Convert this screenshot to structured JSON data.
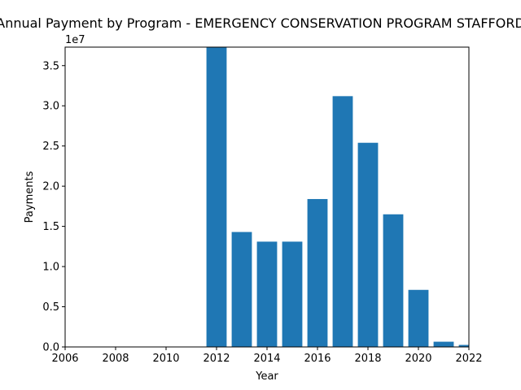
{
  "chart_data": {
    "type": "bar",
    "title": "Annual Payment by Program - EMERGENCY CONSERVATION PROGRAM STAFFORD",
    "xlabel": "Year",
    "ylabel": "Payments",
    "y_offset_label": "1e7",
    "xlim": [
      2006,
      2022
    ],
    "ylim": [
      0,
      37300000
    ],
    "x_ticks": [
      "2006",
      "2008",
      "2010",
      "2012",
      "2014",
      "2016",
      "2018",
      "2020",
      "2022"
    ],
    "y_ticks": [
      "0.0",
      "0.5",
      "1.0",
      "1.5",
      "2.0",
      "2.5",
      "3.0",
      "3.5"
    ],
    "grid": false,
    "bar_color": "#1f77b4",
    "categories": [
      2012,
      2013,
      2014,
      2015,
      2016,
      2017,
      2018,
      2019,
      2020,
      2021,
      2022
    ],
    "values": [
      37300000,
      14300000,
      13100000,
      13100000,
      18400000,
      31200000,
      25400000,
      16500000,
      7100000,
      650000,
      250000
    ]
  }
}
